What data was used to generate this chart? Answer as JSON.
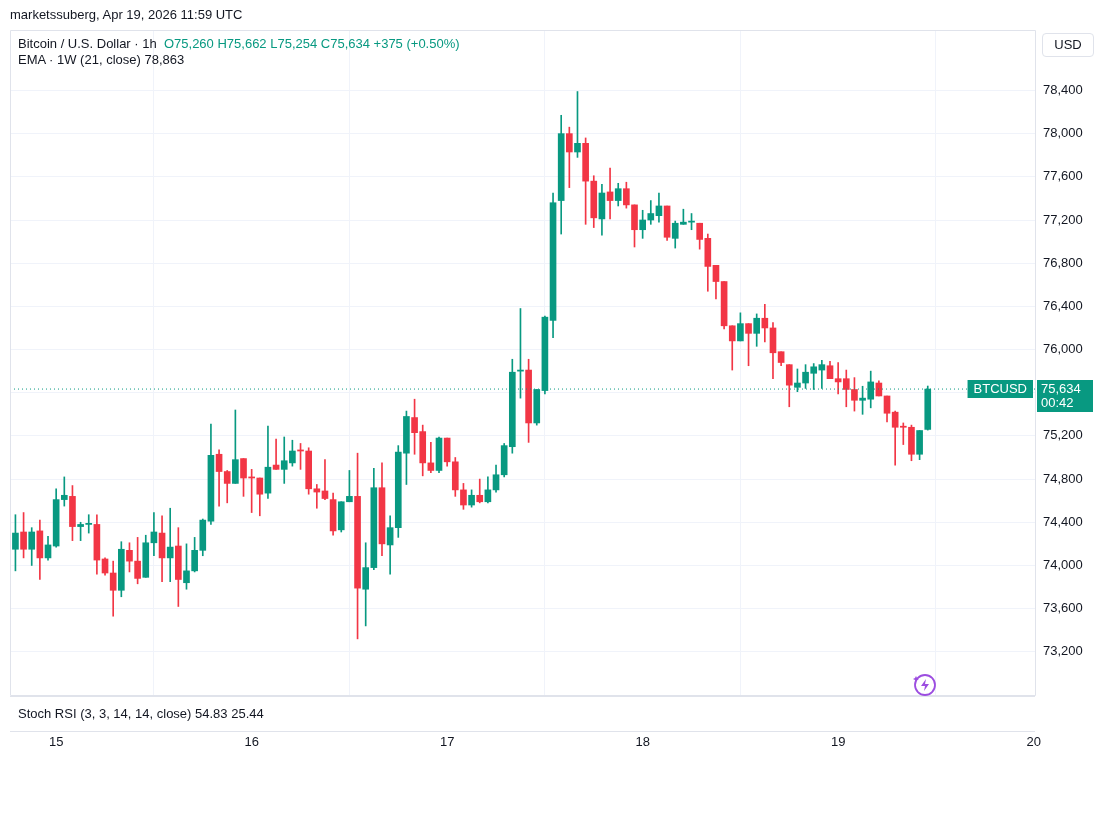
{
  "chart_data": {
    "type": "candlestick",
    "title": "Bitcoin / U.S. Dollar · 1h",
    "ylabel": "USD",
    "annotations": [
      "marketssuberg, Apr 19, 2026 11:59 UTC",
      "O75,260 H75,662 L75,254 C75,634 +375 (+0.50%)",
      "EMA · 1W (21, close) 78,863",
      "Stoch RSI (3, 3, 14, 14, close) 54.83 25.44",
      "75,634",
      "00:42"
    ],
    "x": [
      "2026-04-14T19:00",
      "2026-04-14T20:00",
      "2026-04-14T21:00",
      "2026-04-14T22:00",
      "2026-04-14T23:00",
      "2026-04-15T00:00",
      "2026-04-15T01:00",
      "2026-04-15T02:00",
      "2026-04-15T03:00",
      "2026-04-15T04:00",
      "2026-04-15T05:00",
      "2026-04-15T06:00",
      "2026-04-15T07:00",
      "2026-04-15T08:00",
      "2026-04-15T09:00",
      "2026-04-15T10:00",
      "2026-04-15T11:00",
      "2026-04-15T12:00",
      "2026-04-15T13:00",
      "2026-04-15T14:00",
      "2026-04-15T15:00",
      "2026-04-15T16:00",
      "2026-04-15T17:00",
      "2026-04-15T18:00",
      "2026-04-15T19:00",
      "2026-04-15T20:00",
      "2026-04-15T21:00",
      "2026-04-15T22:00",
      "2026-04-15T23:00",
      "2026-04-16T00:00",
      "2026-04-16T01:00",
      "2026-04-16T02:00",
      "2026-04-16T03:00",
      "2026-04-16T04:00",
      "2026-04-16T05:00",
      "2026-04-16T06:00",
      "2026-04-16T07:00",
      "2026-04-16T08:00",
      "2026-04-16T09:00",
      "2026-04-16T10:00",
      "2026-04-16T11:00",
      "2026-04-16T12:00",
      "2026-04-16T13:00",
      "2026-04-16T14:00",
      "2026-04-16T15:00",
      "2026-04-16T16:00",
      "2026-04-16T17:00",
      "2026-04-16T18:00",
      "2026-04-16T19:00",
      "2026-04-16T20:00",
      "2026-04-16T21:00",
      "2026-04-16T22:00",
      "2026-04-16T23:00",
      "2026-04-17T00:00",
      "2026-04-17T01:00",
      "2026-04-17T02:00",
      "2026-04-17T03:00",
      "2026-04-17T04:00",
      "2026-04-17T05:00",
      "2026-04-17T06:00",
      "2026-04-17T07:00",
      "2026-04-17T08:00",
      "2026-04-17T09:00",
      "2026-04-17T10:00",
      "2026-04-17T11:00",
      "2026-04-17T12:00",
      "2026-04-17T13:00",
      "2026-04-17T14:00",
      "2026-04-17T15:00",
      "2026-04-17T16:00",
      "2026-04-17T17:00",
      "2026-04-17T18:00",
      "2026-04-17T19:00",
      "2026-04-17T20:00",
      "2026-04-17T21:00",
      "2026-04-17T22:00",
      "2026-04-17T23:00",
      "2026-04-18T00:00",
      "2026-04-18T01:00",
      "2026-04-18T02:00",
      "2026-04-18T03:00",
      "2026-04-18T04:00",
      "2026-04-18T05:00",
      "2026-04-18T06:00",
      "2026-04-18T07:00",
      "2026-04-18T08:00",
      "2026-04-18T09:00",
      "2026-04-18T10:00",
      "2026-04-18T11:00",
      "2026-04-18T12:00",
      "2026-04-18T13:00",
      "2026-04-18T14:00",
      "2026-04-18T15:00",
      "2026-04-18T16:00",
      "2026-04-18T17:00",
      "2026-04-18T18:00",
      "2026-04-18T19:00",
      "2026-04-18T20:00",
      "2026-04-18T21:00",
      "2026-04-18T22:00",
      "2026-04-18T23:00",
      "2026-04-19T00:00",
      "2026-04-19T01:00",
      "2026-04-19T02:00",
      "2026-04-19T03:00",
      "2026-04-19T04:00",
      "2026-04-19T05:00",
      "2026-04-19T06:00",
      "2026-04-19T07:00",
      "2026-04-19T08:00",
      "2026-04-19T09:00",
      "2026-04-19T10:00",
      "2026-04-19T11:00"
    ],
    "ohlc": [
      [
        74150,
        74470,
        73950,
        74300
      ],
      [
        74310,
        74490,
        74070,
        74150
      ],
      [
        74150,
        74350,
        74000,
        74310
      ],
      [
        74320,
        74420,
        73870,
        74070
      ],
      [
        74070,
        74270,
        74050,
        74190
      ],
      [
        74180,
        74710,
        74170,
        74610
      ],
      [
        74610,
        74820,
        74550,
        74650
      ],
      [
        74640,
        74740,
        74230,
        74360
      ],
      [
        74360,
        74400,
        74230,
        74380
      ],
      [
        74380,
        74470,
        74300,
        74390
      ],
      [
        74380,
        74470,
        73920,
        74050
      ],
      [
        74060,
        74070,
        73910,
        73930
      ],
      [
        73930,
        74040,
        73530,
        73770
      ],
      [
        73770,
        74220,
        73710,
        74150
      ],
      [
        74140,
        74210,
        73940,
        74040
      ],
      [
        74040,
        74260,
        73830,
        73880
      ],
      [
        73890,
        74280,
        73890,
        74210
      ],
      [
        74210,
        74490,
        74090,
        74310
      ],
      [
        74300,
        74460,
        73850,
        74070
      ],
      [
        74070,
        74530,
        73850,
        74170
      ],
      [
        74180,
        74350,
        73620,
        73870
      ],
      [
        73840,
        74200,
        73780,
        73950
      ],
      [
        73950,
        74260,
        73940,
        74140
      ],
      [
        74140,
        74430,
        74090,
        74420
      ],
      [
        74410,
        75310,
        74380,
        75020
      ],
      [
        75030,
        75070,
        74550,
        74870
      ],
      [
        74870,
        74880,
        74580,
        74760
      ],
      [
        74760,
        75440,
        74760,
        74980
      ],
      [
        74990,
        74990,
        74640,
        74810
      ],
      [
        74820,
        74890,
        74490,
        74810
      ],
      [
        74810,
        74810,
        74460,
        74660
      ],
      [
        74670,
        75290,
        74620,
        74910
      ],
      [
        74930,
        75170,
        74890,
        74890
      ],
      [
        74890,
        75190,
        74760,
        74970
      ],
      [
        74950,
        75160,
        74920,
        75060
      ],
      [
        75070,
        75130,
        74890,
        75060
      ],
      [
        75060,
        75090,
        74660,
        74710
      ],
      [
        74710,
        74750,
        74530,
        74680
      ],
      [
        74690,
        74980,
        74610,
        74620
      ],
      [
        74610,
        74670,
        74280,
        74320
      ],
      [
        74330,
        74590,
        74310,
        74590
      ],
      [
        74590,
        74880,
        74590,
        74640
      ],
      [
        74640,
        75040,
        73320,
        73790
      ],
      [
        73780,
        74210,
        73440,
        73980
      ],
      [
        73980,
        74900,
        73960,
        74720
      ],
      [
        74720,
        74950,
        74090,
        74200
      ],
      [
        74190,
        74460,
        73920,
        74350
      ],
      [
        74350,
        75110,
        74260,
        75050
      ],
      [
        75040,
        75430,
        74750,
        75380
      ],
      [
        75370,
        75540,
        75030,
        75230
      ],
      [
        75240,
        75300,
        74830,
        74950
      ],
      [
        74950,
        75140,
        74860,
        74880
      ],
      [
        74880,
        75190,
        74860,
        75180
      ],
      [
        75180,
        75180,
        74920,
        74960
      ],
      [
        74960,
        75000,
        74640,
        74700
      ],
      [
        74700,
        74760,
        74520,
        74560
      ],
      [
        74560,
        74700,
        74540,
        74650
      ],
      [
        74650,
        74800,
        74580,
        74590
      ],
      [
        74590,
        74820,
        74580,
        74700
      ],
      [
        74700,
        74930,
        74680,
        74840
      ],
      [
        74840,
        75130,
        74820,
        75110
      ],
      [
        75100,
        75910,
        75040,
        75790
      ],
      [
        75800,
        76380,
        75550,
        75810
      ],
      [
        75810,
        75910,
        75140,
        75320
      ],
      [
        75320,
        75630,
        75300,
        75630
      ],
      [
        75620,
        76310,
        75590,
        76300
      ],
      [
        76270,
        77450,
        76110,
        77360
      ],
      [
        77380,
        78170,
        77070,
        78000
      ],
      [
        78000,
        78060,
        77500,
        77830
      ],
      [
        77830,
        78390,
        77780,
        77910
      ],
      [
        77910,
        77960,
        77160,
        77560
      ],
      [
        77560,
        77610,
        77130,
        77220
      ],
      [
        77210,
        77530,
        77060,
        77450
      ],
      [
        77460,
        77680,
        77210,
        77380
      ],
      [
        77380,
        77540,
        77330,
        77490
      ],
      [
        77490,
        77550,
        77310,
        77340
      ],
      [
        77340,
        77340,
        76950,
        77110
      ],
      [
        77110,
        77290,
        77030,
        77200
      ],
      [
        77200,
        77380,
        77160,
        77260
      ],
      [
        77240,
        77450,
        77180,
        77330
      ],
      [
        77330,
        77330,
        77010,
        77040
      ],
      [
        77030,
        77190,
        76940,
        77170
      ],
      [
        77160,
        77300,
        77160,
        77180
      ],
      [
        77180,
        77260,
        77110,
        77190
      ],
      [
        77170,
        77170,
        76930,
        77020
      ],
      [
        77030,
        77070,
        76540,
        76770
      ],
      [
        76780,
        76780,
        76470,
        76630
      ],
      [
        76630,
        76630,
        76190,
        76220
      ],
      [
        76220,
        76220,
        75810,
        76080
      ],
      [
        76080,
        76340,
        76080,
        76240
      ],
      [
        76240,
        76240,
        75850,
        76150
      ],
      [
        76150,
        76330,
        76030,
        76290
      ],
      [
        76290,
        76420,
        76070,
        76200
      ],
      [
        76200,
        76250,
        75730,
        75970
      ],
      [
        75980,
        75980,
        75850,
        75880
      ],
      [
        75860,
        75860,
        75470,
        75670
      ],
      [
        75650,
        75820,
        75610,
        75690
      ],
      [
        75690,
        75860,
        75640,
        75790
      ],
      [
        75780,
        75870,
        75630,
        75840
      ],
      [
        75810,
        75900,
        75640,
        75860
      ],
      [
        75850,
        75890,
        75730,
        75730
      ],
      [
        75730,
        75880,
        75590,
        75700
      ],
      [
        75730,
        75810,
        75470,
        75630
      ],
      [
        75630,
        75740,
        75430,
        75530
      ],
      [
        75530,
        75660,
        75400,
        75550
      ],
      [
        75540,
        75800,
        75460,
        75700
      ],
      [
        75690,
        75710,
        75570,
        75570
      ],
      [
        75570,
        75570,
        75330,
        75410
      ],
      [
        75420,
        75430,
        74930,
        75280
      ],
      [
        75290,
        75320,
        75120,
        75280
      ],
      [
        75280,
        75300,
        74970,
        75030
      ],
      [
        75030,
        75250,
        74980,
        75250
      ],
      [
        75260,
        75662,
        75254,
        75634
      ]
    ],
    "colors": [
      "#089981",
      "#f23645",
      "#089981",
      "#f23645",
      "#089981",
      "#089981",
      "#089981",
      "#f23645",
      "#089981",
      "#089981",
      "#f23645",
      "#f23645",
      "#f23645",
      "#089981",
      "#f23645",
      "#f23645",
      "#089981",
      "#089981",
      "#f23645",
      "#089981",
      "#f23645",
      "#089981",
      "#089981",
      "#089981",
      "#089981",
      "#f23645",
      "#f23645",
      "#089981",
      "#f23645",
      "#f23645",
      "#f23645",
      "#089981",
      "#f23645",
      "#089981",
      "#089981",
      "#f23645",
      "#f23645",
      "#f23645",
      "#f23645",
      "#f23645",
      "#089981",
      "#089981",
      "#f23645",
      "#089981",
      "#089981",
      "#f23645",
      "#089981",
      "#089981",
      "#089981",
      "#f23645",
      "#f23645",
      "#f23645",
      "#089981",
      "#f23645",
      "#f23645",
      "#f23645",
      "#089981",
      "#f23645",
      "#089981",
      "#089981",
      "#089981",
      "#089981",
      "#089981",
      "#f23645",
      "#089981",
      "#089981",
      "#089981",
      "#089981",
      "#f23645",
      "#089981",
      "#f23645",
      "#f23645",
      "#089981",
      "#f23645",
      "#089981",
      "#f23645",
      "#f23645",
      "#089981",
      "#089981",
      "#089981",
      "#f23645",
      "#089981",
      "#089981",
      "#089981",
      "#f23645",
      "#f23645",
      "#f23645",
      "#f23645",
      "#f23645",
      "#089981",
      "#f23645",
      "#089981",
      "#f23645",
      "#f23645",
      "#f23645",
      "#f23645",
      "#089981",
      "#089981",
      "#089981",
      "#089981",
      "#f23645",
      "#f23645",
      "#f23645",
      "#f23645",
      "#089981",
      "#089981",
      "#f23645",
      "#f23645",
      "#f23645",
      "#f23645",
      "#f23645",
      "#089981",
      "#089981"
    ],
    "xlim": [
      "2026-04-14T18:20",
      "2026-04-20T00:10"
    ],
    "xticks": [
      {
        "value": "2026-04-15",
        "label": "15"
      },
      {
        "value": "2026-04-16",
        "label": "16"
      },
      {
        "value": "2026-04-17",
        "label": "17"
      },
      {
        "value": "2026-04-18",
        "label": "18"
      },
      {
        "value": "2026-04-19",
        "label": "19"
      },
      {
        "value": "2026-04-20",
        "label": "20"
      }
    ],
    "ylim": [
      72800,
      78960
    ],
    "yticks": [
      {
        "value": 73200,
        "label": "73,200"
      },
      {
        "value": 73600,
        "label": "73,600"
      },
      {
        "value": 74000,
        "label": "74,000"
      },
      {
        "value": 74400,
        "label": "74,400"
      },
      {
        "value": 74800,
        "label": "74,800"
      },
      {
        "value": 75200,
        "label": "75,200"
      },
      {
        "value": 75600,
        "label": null
      },
      {
        "value": 76000,
        "label": "76,000"
      },
      {
        "value": 76400,
        "label": "76,400"
      },
      {
        "value": 76800,
        "label": "76,800"
      },
      {
        "value": 77200,
        "label": "77,200"
      },
      {
        "value": 77600,
        "label": "77,600"
      },
      {
        "value": 78000,
        "label": "78,000"
      },
      {
        "value": 78400,
        "label": "78,400"
      }
    ],
    "ref_lines": [
      {
        "axis": "y",
        "value": 75634,
        "label": "BTCUSD",
        "color": "#089981",
        "line_style": "dotted"
      }
    ],
    "grid": true
  }
}
